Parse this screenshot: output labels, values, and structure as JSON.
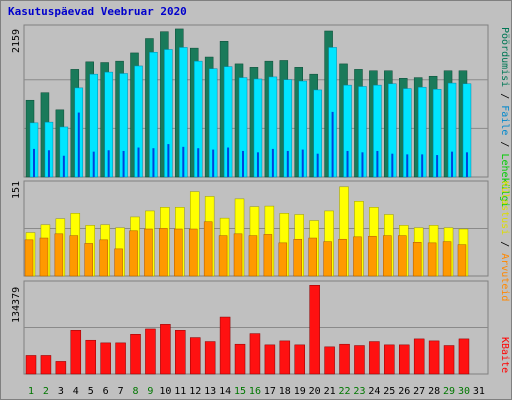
{
  "title": "Kasutuspäevad Veebruar 2020",
  "colors": {
    "background": "#c0c0c0",
    "panel": "#c0c0c0",
    "frame_dark": "#808080",
    "pageviews": "#1a7a5a",
    "files": "#00e5ff",
    "hits": "#0044dd",
    "sites": "#ffff00",
    "visits": "#ff9900",
    "kbytes": "#ff1111",
    "weekend_label": "#007700",
    "weekday_label": "#000000"
  },
  "right_labels": {
    "top": [
      {
        "text": "Pöördumisi",
        "color": "#007755"
      },
      {
        "text": " / ",
        "color": "#000000"
      },
      {
        "text": "Faile",
        "color": "#0088cc"
      },
      {
        "text": " / ",
        "color": "#000000"
      },
      {
        "text": "Lehekülgi",
        "color": "#00cc00"
      }
    ],
    "middle": [
      {
        "text": "Külastusi",
        "color": "#dddd00"
      },
      {
        "text": " / ",
        "color": "#000000"
      },
      {
        "text": "Arvuteid",
        "color": "#ff8800"
      }
    ],
    "bottom": [
      {
        "text": "KBaite",
        "color": "#ff0000"
      }
    ]
  },
  "chart_data": [
    {
      "type": "bar",
      "panel": "top",
      "ymax_label": "2159",
      "ylim": [
        0,
        2159
      ],
      "x": [
        "1",
        "2",
        "3",
        "4",
        "5",
        "6",
        "7",
        "8",
        "9",
        "10",
        "11",
        "12",
        "13",
        "14",
        "15",
        "16",
        "17",
        "18",
        "19",
        "20",
        "21",
        "22",
        "23",
        "24",
        "25",
        "26",
        "27",
        "28",
        "29",
        "30",
        "31"
      ],
      "series": [
        {
          "name": "Pöördumisi",
          "values": [
            1120,
            1230,
            980,
            1570,
            1680,
            1670,
            1690,
            1810,
            2020,
            2120,
            2160,
            1880,
            1750,
            1980,
            1650,
            1600,
            1690,
            1700,
            1600,
            1500,
            2130,
            1650,
            1570,
            1550,
            1550,
            1440,
            1450,
            1470,
            1550,
            1550,
            null
          ]
        },
        {
          "name": "Faile",
          "values": [
            790,
            800,
            730,
            1300,
            1500,
            1530,
            1510,
            1620,
            1820,
            1860,
            1890,
            1690,
            1580,
            1610,
            1450,
            1430,
            1460,
            1420,
            1400,
            1270,
            1890,
            1340,
            1320,
            1340,
            1360,
            1290,
            1310,
            1280,
            1370,
            1360,
            null
          ]
        },
        {
          "name": "Lehekülgi",
          "values": [
            410,
            390,
            310,
            940,
            370,
            390,
            380,
            430,
            420,
            480,
            440,
            420,
            400,
            430,
            380,
            360,
            410,
            380,
            400,
            340,
            950,
            380,
            360,
            380,
            340,
            330,
            330,
            320,
            370,
            360,
            null
          ]
        }
      ],
      "weekend_days": [
        "1",
        "2",
        "8",
        "9",
        "15",
        "16",
        "22",
        "23",
        "29",
        "30"
      ]
    },
    {
      "type": "bar",
      "panel": "middle",
      "ymax_label": "151",
      "ylim": [
        0,
        151
      ],
      "x": [
        "1",
        "2",
        "3",
        "4",
        "5",
        "6",
        "7",
        "8",
        "9",
        "10",
        "11",
        "12",
        "13",
        "14",
        "15",
        "16",
        "17",
        "18",
        "19",
        "20",
        "21",
        "22",
        "23",
        "24",
        "25",
        "26",
        "27",
        "28",
        "29",
        "30",
        "31"
      ],
      "series": [
        {
          "name": "Külastusi",
          "values": [
            72,
            85,
            95,
            104,
            84,
            85,
            80,
            98,
            108,
            114,
            114,
            140,
            132,
            96,
            128,
            115,
            116,
            104,
            102,
            92,
            108,
            148,
            124,
            114,
            102,
            84,
            80,
            84,
            80,
            78,
            null
          ]
        },
        {
          "name": "Arvuteid",
          "values": [
            60,
            63,
            70,
            67,
            54,
            60,
            45,
            75,
            78,
            79,
            78,
            78,
            90,
            67,
            70,
            67,
            69,
            55,
            61,
            63,
            57,
            61,
            65,
            66,
            67,
            67,
            56,
            55,
            57,
            52,
            null
          ]
        }
      ]
    },
    {
      "type": "bar",
      "panel": "bottom",
      "ymax_label": "134379",
      "ylim": [
        0,
        134379
      ],
      "x": [
        "1",
        "2",
        "3",
        "4",
        "5",
        "6",
        "7",
        "8",
        "9",
        "10",
        "11",
        "12",
        "13",
        "14",
        "15",
        "16",
        "17",
        "18",
        "19",
        "20",
        "21",
        "22",
        "23",
        "24",
        "25",
        "26",
        "27",
        "28",
        "29",
        "30",
        "31"
      ],
      "series": [
        {
          "name": "KBaite",
          "values": [
            28000,
            28000,
            19000,
            66000,
            51000,
            47000,
            47000,
            60000,
            68000,
            75000,
            66000,
            55000,
            49000,
            86000,
            45000,
            61000,
            44000,
            50000,
            44000,
            134000,
            41000,
            45000,
            43000,
            49000,
            44000,
            44000,
            53000,
            50000,
            43000,
            53000,
            null
          ]
        }
      ]
    }
  ]
}
